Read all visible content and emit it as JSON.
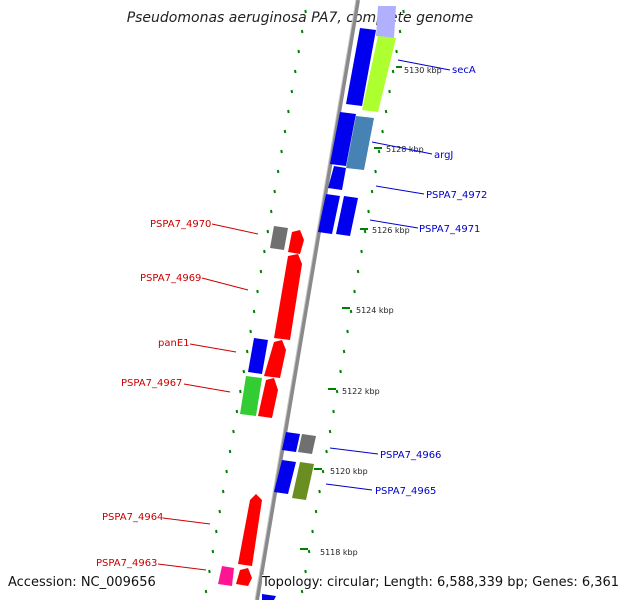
{
  "title": "Pseudomonas aeruginosa PA7, complete genome",
  "footer": {
    "accession": "Accession: NC_009656",
    "topology": "Topology: circular; Length: 6,588,339 bp; Genes: 6,361"
  },
  "scale_labels": [
    "5130 kbp",
    "5128 kbp",
    "5126 kbp",
    "5124 kbp",
    "5122 kbp",
    "5120 kbp",
    "5118 kbp"
  ],
  "gene_labels_right": [
    "secA",
    "argJ",
    "PSPA7_4972",
    "PSPA7_4971",
    "PSPA7_4966",
    "PSPA7_4965"
  ],
  "gene_labels_left": [
    "PSPA7_4970",
    "PSPA7_4969",
    "panE1",
    "PSPA7_4967",
    "PSPA7_4964",
    "PSPA7_4963"
  ],
  "colors": {
    "red": "#ff0000",
    "blue": "#0000ee",
    "green": "#33cc33",
    "olive": "#6b8e23",
    "lime": "#adff2f",
    "steelblue": "#4682b4",
    "gray": "#707070",
    "magenta": "#ff1493",
    "dotted": "#008000",
    "backbone": "#888888"
  }
}
